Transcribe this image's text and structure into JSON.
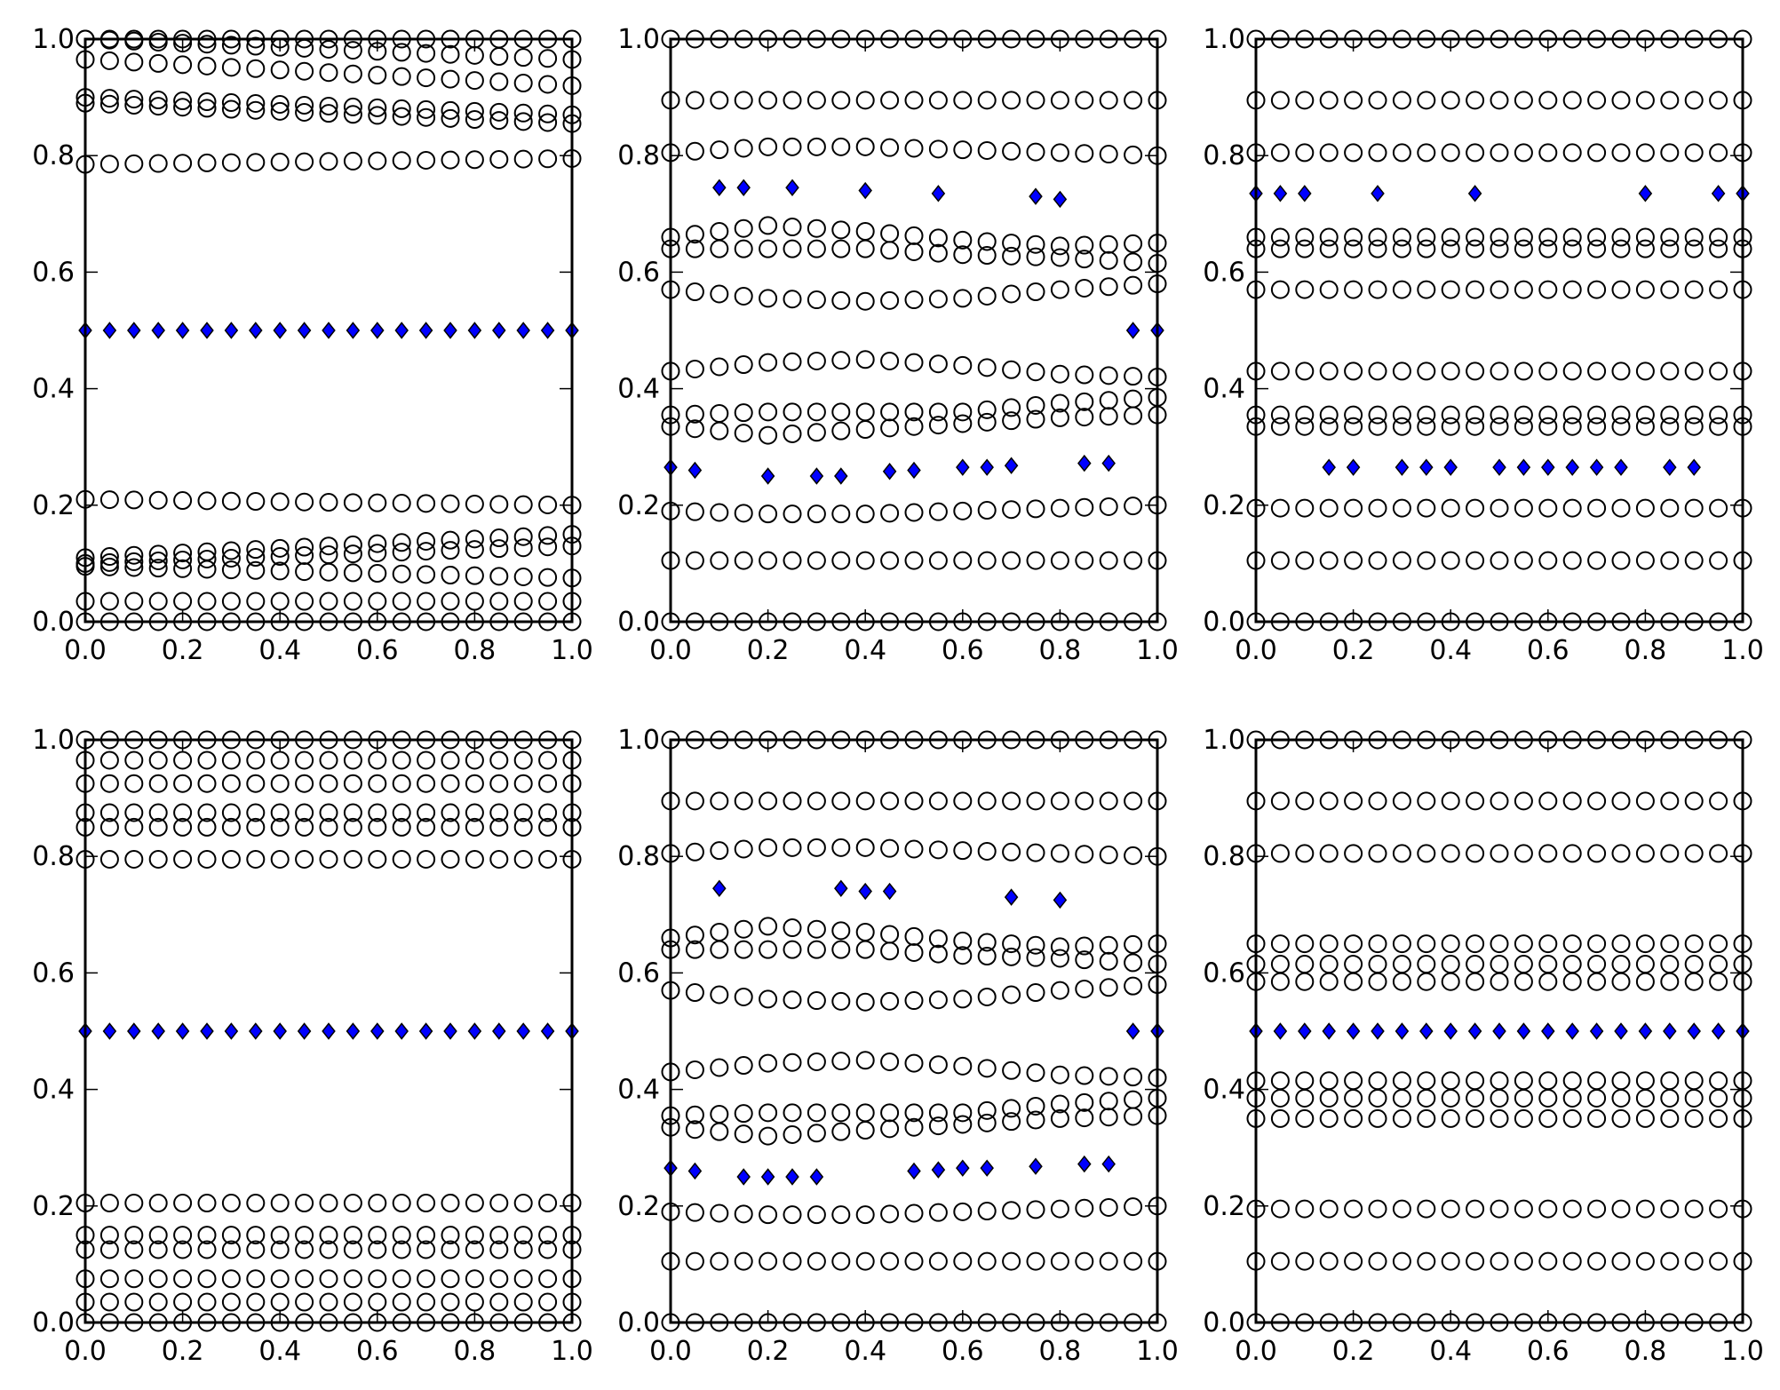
{
  "colors": {
    "ring": "#000000",
    "diamond_fill": "#0000ff",
    "axes": "#000000",
    "background": "#ffffff"
  },
  "chart_data": [
    {
      "type": "scatter",
      "panel": "top-left",
      "xlim": [
        0,
        1
      ],
      "ylim": [
        0,
        1
      ],
      "xticks": [
        "0.0",
        "0.2",
        "0.4",
        "0.6",
        "0.8",
        "1.0"
      ],
      "yticks": [
        "0.0",
        "0.2",
        "0.4",
        "0.6",
        "0.8",
        "1.0"
      ],
      "x": [
        0,
        0.05,
        0.1,
        0.15,
        0.2,
        0.25,
        0.3,
        0.35,
        0.4,
        0.45,
        0.5,
        0.55,
        0.6,
        0.65,
        0.7,
        0.75,
        0.8,
        0.85,
        0.9,
        0.95,
        1.0
      ],
      "series": [
        {
          "marker": "circle",
          "y0": [
            0,
            0.035,
            0.095,
            0.1,
            0.11,
            0.21,
            0.785,
            0.89,
            0.9,
            0.965,
            1.0
          ],
          "y1": [
            0,
            0.035,
            0.075,
            0.13,
            0.15,
            0.2,
            0.795,
            0.855,
            0.87,
            0.92,
            0.965,
            1.0
          ]
        },
        {
          "marker": "diamond",
          "y0": [
            0.5
          ],
          "y1": [
            0.5
          ]
        }
      ]
    },
    {
      "type": "scatter",
      "panel": "top-middle",
      "xlim": [
        0,
        1
      ],
      "ylim": [
        0,
        1
      ],
      "xticks": [
        "0.0",
        "0.2",
        "0.4",
        "0.6",
        "0.8",
        "1.0"
      ],
      "yticks": [
        "0.0",
        "0.2",
        "0.4",
        "0.6",
        "0.8",
        "1.0"
      ],
      "x": [
        0,
        0.05,
        0.1,
        0.15,
        0.2,
        0.25,
        0.3,
        0.35,
        0.4,
        0.45,
        0.5,
        0.55,
        0.6,
        0.65,
        0.7,
        0.75,
        0.8,
        0.85,
        0.9,
        0.95,
        1.0
      ],
      "series": [
        {
          "marker": "circle",
          "rows": [
            {
              "x": [
                0.0,
                0.2,
                0.4,
                0.6,
                0.8,
                1.0
              ],
              "y": [
                0,
                0,
                0,
                0,
                0,
                0
              ]
            },
            {
              "x": [
                0.0,
                1.0
              ],
              "y": [
                0.105,
                0.105
              ]
            },
            {
              "x": [
                0.0,
                0.2,
                0.4,
                0.6,
                0.8,
                1.0
              ],
              "y": [
                0.19,
                0.185,
                0.185,
                0.19,
                0.195,
                0.2
              ]
            },
            {
              "x": [
                0.0,
                0.2,
                0.4,
                0.6,
                0.8,
                1.0
              ],
              "y": [
                0.335,
                0.32,
                0.33,
                0.34,
                0.35,
                0.355
              ]
            },
            {
              "x": [
                0.0,
                0.2,
                0.4,
                0.6,
                0.8,
                1.0
              ],
              "y": [
                0.355,
                0.36,
                0.36,
                0.36,
                0.375,
                0.385
              ]
            },
            {
              "x": [
                0.0,
                0.2,
                0.4,
                0.6,
                0.8,
                1.0
              ],
              "y": [
                0.43,
                0.445,
                0.45,
                0.44,
                0.425,
                0.42
              ]
            },
            {
              "x": [
                0.0,
                0.2,
                0.4,
                0.6,
                0.8,
                1.0
              ],
              "y": [
                0.57,
                0.555,
                0.55,
                0.555,
                0.57,
                0.58
              ]
            },
            {
              "x": [
                0.0,
                0.2,
                0.4,
                0.6,
                0.8,
                1.0
              ],
              "y": [
                0.64,
                0.64,
                0.64,
                0.63,
                0.625,
                0.615
              ]
            },
            {
              "x": [
                0.0,
                0.2,
                0.4,
                0.6,
                0.8,
                1.0
              ],
              "y": [
                0.66,
                0.68,
                0.67,
                0.655,
                0.645,
                0.65
              ]
            },
            {
              "x": [
                0.0,
                0.2,
                0.4,
                0.6,
                0.8,
                1.0
              ],
              "y": [
                0.805,
                0.815,
                0.815,
                0.81,
                0.805,
                0.8
              ]
            },
            {
              "x": [
                0.0,
                1.0
              ],
              "y": [
                0.895,
                0.895
              ]
            },
            {
              "x": [
                0.0,
                0.2,
                0.4,
                0.6,
                0.8,
                1.0
              ],
              "y": [
                1,
                1,
                1,
                1,
                1,
                1
              ]
            }
          ]
        },
        {
          "marker": "diamond",
          "points": [
            [
              0.1,
              0.745
            ],
            [
              0.15,
              0.745
            ],
            [
              0.25,
              0.745
            ],
            [
              0.4,
              0.74
            ],
            [
              0.55,
              0.735
            ],
            [
              0.75,
              0.73
            ],
            [
              0.8,
              0.725
            ],
            [
              0.95,
              0.5
            ],
            [
              1.0,
              0.5
            ],
            [
              0.0,
              0.265
            ],
            [
              0.05,
              0.26
            ],
            [
              0.2,
              0.25
            ],
            [
              0.3,
              0.25
            ],
            [
              0.35,
              0.25
            ],
            [
              0.45,
              0.258
            ],
            [
              0.5,
              0.26
            ],
            [
              0.6,
              0.265
            ],
            [
              0.65,
              0.265
            ],
            [
              0.7,
              0.268
            ],
            [
              0.85,
              0.272
            ],
            [
              0.9,
              0.272
            ]
          ]
        }
      ]
    },
    {
      "type": "scatter",
      "panel": "top-right",
      "xlim": [
        0,
        1
      ],
      "ylim": [
        0,
        1
      ],
      "xticks": [
        "0.0",
        "0.2",
        "0.4",
        "0.6",
        "0.8",
        "1.0"
      ],
      "yticks": [
        "0.0",
        "0.2",
        "0.4",
        "0.6",
        "0.8",
        "1.0"
      ],
      "series": [
        {
          "marker": "circle",
          "y": [
            0,
            0.105,
            0.195,
            0.335,
            0.355,
            0.43,
            0.57,
            0.64,
            0.66,
            0.805,
            0.895,
            1.0
          ]
        },
        {
          "marker": "diamond",
          "points": [
            [
              0.0,
              0.735
            ],
            [
              0.05,
              0.735
            ],
            [
              0.1,
              0.735
            ],
            [
              0.25,
              0.735
            ],
            [
              0.45,
              0.735
            ],
            [
              0.8,
              0.735
            ],
            [
              0.95,
              0.735
            ],
            [
              1.0,
              0.735
            ],
            [
              0.15,
              0.265
            ],
            [
              0.2,
              0.265
            ],
            [
              0.3,
              0.265
            ],
            [
              0.35,
              0.265
            ],
            [
              0.4,
              0.265
            ],
            [
              0.5,
              0.265
            ],
            [
              0.55,
              0.265
            ],
            [
              0.6,
              0.265
            ],
            [
              0.65,
              0.265
            ],
            [
              0.7,
              0.265
            ],
            [
              0.75,
              0.265
            ],
            [
              0.85,
              0.265
            ],
            [
              0.9,
              0.265
            ]
          ]
        }
      ]
    },
    {
      "type": "scatter",
      "panel": "bottom-left",
      "xlim": [
        0,
        1
      ],
      "ylim": [
        0,
        1
      ],
      "xticks": [
        "0.0",
        "0.2",
        "0.4",
        "0.6",
        "0.8",
        "1.0"
      ],
      "yticks": [
        "0.0",
        "0.2",
        "0.4",
        "0.6",
        "0.8",
        "1.0"
      ],
      "series": [
        {
          "marker": "circle",
          "y": [
            0,
            0.035,
            0.075,
            0.125,
            0.15,
            0.205,
            0.795,
            0.85,
            0.875,
            0.925,
            0.965,
            1.0
          ]
        },
        {
          "marker": "diamond",
          "y": [
            0.5
          ]
        }
      ]
    },
    {
      "type": "scatter",
      "panel": "bottom-middle",
      "xlim": [
        0,
        1
      ],
      "ylim": [
        0,
        1
      ],
      "xticks": [
        "0.0",
        "0.2",
        "0.4",
        "0.6",
        "0.8",
        "1.0"
      ],
      "yticks": [
        "0.0",
        "0.2",
        "0.4",
        "0.6",
        "0.8",
        "1.0"
      ],
      "series": [
        {
          "marker": "circle",
          "same_as_panel": "top-middle"
        },
        {
          "marker": "diamond",
          "points": [
            [
              0.1,
              0.745
            ],
            [
              0.35,
              0.745
            ],
            [
              0.4,
              0.74
            ],
            [
              0.45,
              0.74
            ],
            [
              0.7,
              0.73
            ],
            [
              0.8,
              0.725
            ],
            [
              0.95,
              0.5
            ],
            [
              1.0,
              0.5
            ],
            [
              0.0,
              0.265
            ],
            [
              0.05,
              0.26
            ],
            [
              0.15,
              0.25
            ],
            [
              0.2,
              0.25
            ],
            [
              0.25,
              0.25
            ],
            [
              0.3,
              0.25
            ],
            [
              0.5,
              0.26
            ],
            [
              0.55,
              0.262
            ],
            [
              0.6,
              0.265
            ],
            [
              0.65,
              0.265
            ],
            [
              0.75,
              0.268
            ],
            [
              0.85,
              0.272
            ],
            [
              0.9,
              0.272
            ]
          ]
        }
      ]
    },
    {
      "type": "scatter",
      "panel": "bottom-right",
      "xlim": [
        0,
        1
      ],
      "ylim": [
        0,
        1
      ],
      "xticks": [
        "0.0",
        "0.2",
        "0.4",
        "0.6",
        "0.8",
        "1.0"
      ],
      "yticks": [
        "0.0",
        "0.2",
        "0.4",
        "0.6",
        "0.8",
        "1.0"
      ],
      "series": [
        {
          "marker": "circle",
          "y": [
            0,
            0.105,
            0.195,
            0.35,
            0.385,
            0.415,
            0.585,
            0.615,
            0.65,
            0.805,
            0.895,
            1.0
          ]
        },
        {
          "marker": "diamond",
          "y": [
            0.5
          ]
        }
      ]
    }
  ]
}
